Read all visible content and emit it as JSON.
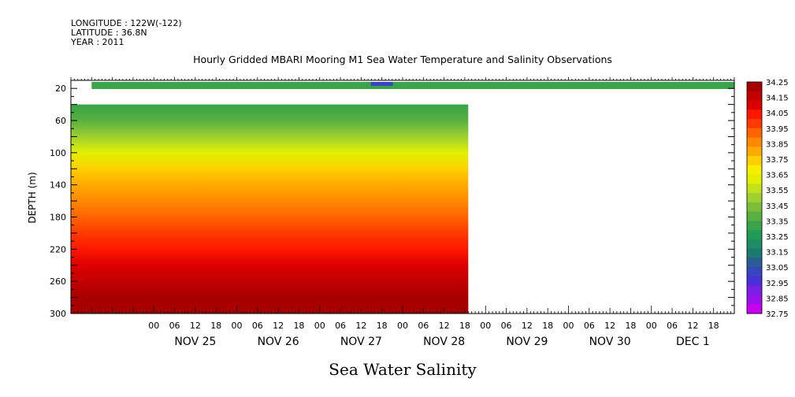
{
  "header": {
    "longitude": "LONGITUDE : 122W(-122)",
    "latitude": "LATITUDE : 36.8N",
    "year": "YEAR : 2011"
  },
  "chart_data": {
    "type": "heatmap",
    "title": "Hourly Gridded MBARI Mooring M1 Sea Water Temperature and Salinity Observations",
    "xlabel": "Sea Water Salinity",
    "ylabel": "DEPTH (m)",
    "ylim": [
      300,
      10
    ],
    "y_ticks": [
      20,
      60,
      100,
      140,
      180,
      220,
      260,
      300
    ],
    "x_hour_labels": [
      "00",
      "06",
      "12",
      "18",
      "00",
      "06",
      "12",
      "18",
      "00",
      "06",
      "12",
      "18",
      "00",
      "06",
      "12",
      "18",
      "00",
      "06",
      "12",
      "18",
      "00",
      "06",
      "12",
      "18",
      "00",
      "06",
      "12",
      "18"
    ],
    "x_day_labels": [
      "NOV 25",
      "NOV 26",
      "NOV 27",
      "NOV 28",
      "NOV 29",
      "NOV 30",
      "DEC  1"
    ],
    "colorbar": {
      "levels": [
        "34.25",
        "34.15",
        "34.05",
        "33.95",
        "33.85",
        "33.75",
        "33.65",
        "33.55",
        "33.45",
        "33.35",
        "33.25",
        "33.15",
        "33.05",
        "32.95",
        "32.85",
        "32.75"
      ],
      "colors": [
        "#a80000",
        "#c20000",
        "#dd0000",
        "#ff1800",
        "#ff3a00",
        "#ff6400",
        "#ff8800",
        "#ffaa00",
        "#ffd000",
        "#f6f000",
        "#e2f000",
        "#c2e21e",
        "#9ed030",
        "#7cbe38",
        "#58b040",
        "#3aa44a",
        "#229a58",
        "#1e8c64",
        "#1a7a72",
        "#2a5c98",
        "#3844c0",
        "#4a30d8",
        "#7a20e4",
        "#9a10ec",
        "#c800f0"
      ],
      "labels": [
        "34.25",
        "34.15",
        "34.05",
        "33.95",
        "33.85",
        "33.75",
        "33.65",
        "33.55",
        "33.45",
        "33.35",
        "33.25",
        "33.15",
        "33.05",
        "32.95",
        "32.85",
        "32.75"
      ]
    },
    "surface_series": {
      "depth": 10,
      "start": "2011-11-24T06:00",
      "end": "2011-12-01T23:00",
      "typical_salinity": 33.3,
      "minimum_salinity": 33.0,
      "minimum_at": "2011-11-27T18:00"
    },
    "profile_series": {
      "start": "2011-11-24T00:00",
      "end": "2011-11-28T19:00",
      "depth_range": [
        40,
        300
      ],
      "times": [
        "2011-11-24T00:00",
        "2011-11-24T18:00",
        "2011-11-25T00:00",
        "2011-11-25T18:00",
        "2011-11-26T00:00",
        "2011-11-26T18:00",
        "2011-11-27T00:00",
        "2011-11-27T18:00",
        "2011-11-28T00:00",
        "2011-11-28T18:00"
      ],
      "depths": [
        40,
        60,
        80,
        100,
        120,
        140,
        160,
        180,
        200,
        220,
        240,
        260,
        280,
        300
      ],
      "salinity_profile": [
        33.32,
        33.4,
        33.5,
        33.62,
        33.72,
        33.82,
        33.9,
        33.96,
        34.02,
        34.08,
        34.14,
        34.2,
        34.24,
        34.24
      ]
    }
  }
}
